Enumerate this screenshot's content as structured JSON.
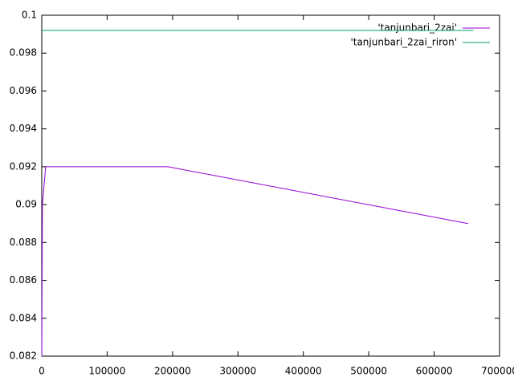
{
  "chart_data": {
    "type": "line",
    "xlim": [
      0,
      700000
    ],
    "xticks": [
      0,
      100000,
      200000,
      300000,
      400000,
      500000,
      600000,
      700000
    ],
    "ylim": [
      0.082,
      0.1
    ],
    "yticks": [
      0.082,
      0.084,
      0.086,
      0.088,
      0.09,
      0.092,
      0.094,
      0.096,
      0.098,
      0.1
    ],
    "legend": "top-right",
    "series": [
      {
        "name": "'tanjunbari_2zai'",
        "color": "#9400d3",
        "x": [
          0,
          1000,
          6000,
          193000,
          652000
        ],
        "values": [
          0.082,
          0.09,
          0.092,
          0.092,
          0.089
        ]
      },
      {
        "name": "'tanjunbari_2zai_riron'",
        "color": "#009e73",
        "x": [
          0,
          660000
        ],
        "values": [
          0.0992,
          0.0992
        ]
      }
    ]
  }
}
